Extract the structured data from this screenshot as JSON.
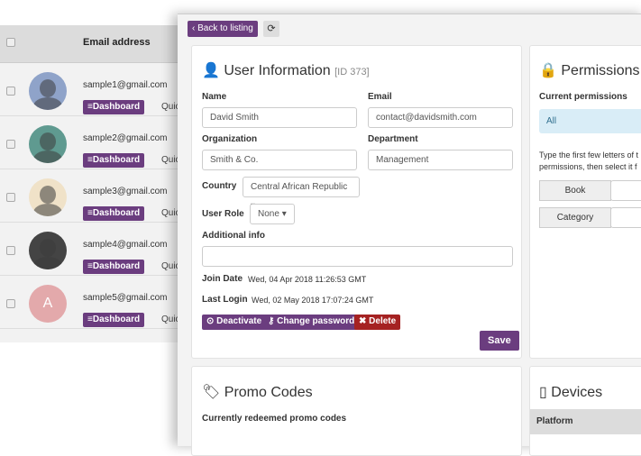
{
  "list": {
    "header": "Email address",
    "dashboard_label": "Dashboard",
    "quick_label": "Quic",
    "rows": [
      {
        "email": "sample1@gmail.com"
      },
      {
        "email": "sample2@gmail.com"
      },
      {
        "email": "sample3@gmail.com"
      },
      {
        "email": "sample4@gmail.com"
      },
      {
        "email": "sample5@gmail.com",
        "initial": "A"
      }
    ]
  },
  "toolbar": {
    "back": "Back to listing"
  },
  "user": {
    "title": "User Information",
    "id": "[ID 373]",
    "name_label": "Name",
    "name": "David Smith",
    "email_label": "Email",
    "email": "contact@davidsmith.com",
    "org_label": "Organization",
    "org": "Smith & Co.",
    "dept_label": "Department",
    "dept": "Management",
    "country_label": "Country",
    "country": "Central African Republic",
    "role_label": "User Role",
    "role": "None",
    "info_label": "Additional info",
    "info": "",
    "join_label": "Join Date",
    "join": "Wed, 04 Apr 2018 11:26:53 GMT",
    "login_label": "Last Login",
    "login": "Wed, 02 May 2018 17:07:24 GMT",
    "deactivate": "Deactivate",
    "change_password": "Change password",
    "delete": "Delete",
    "save": "Save"
  },
  "permissions": {
    "title": "Permissions",
    "current_label": "Current permissions",
    "current": "All",
    "help": "Type the first few letters of t",
    "help2": "permissions, then select it f",
    "book": "Book",
    "category": "Category"
  },
  "promo": {
    "title": "Promo Codes",
    "subtitle": "Currently redeemed promo codes"
  },
  "devices": {
    "title": "Devices",
    "col": "Platform"
  },
  "colors": {
    "accent": "#6b3d7f",
    "danger": "#a52222",
    "info_bg": "#d9edf7"
  }
}
